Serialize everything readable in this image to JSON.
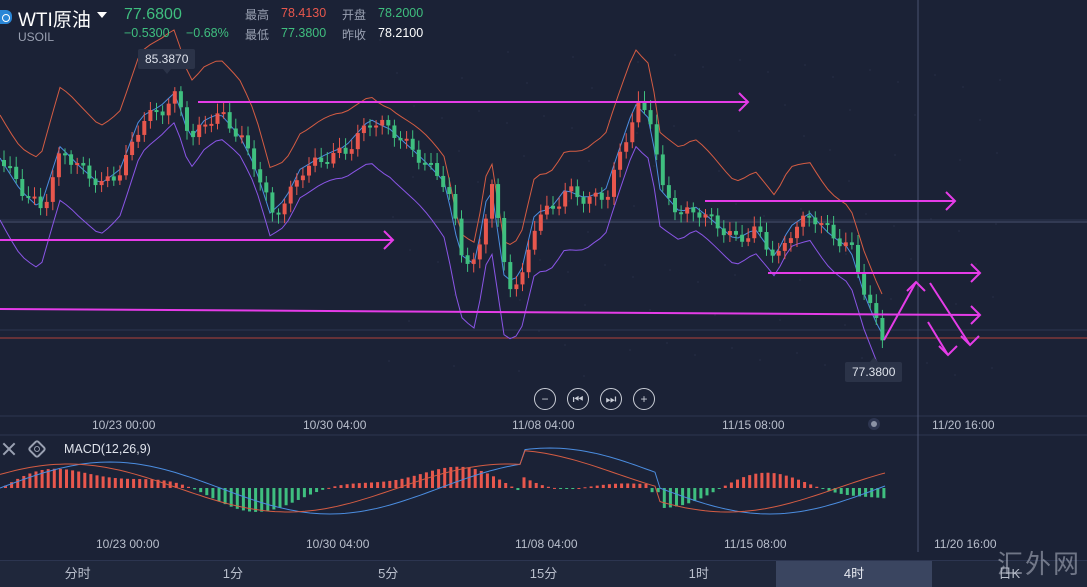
{
  "header": {
    "symbol_name": "WTI原油",
    "symbol_code": "USOIL",
    "last_price": "77.6800",
    "change": "−0.5300",
    "change_pct": "−0.68%",
    "quote": {
      "high_label": "最高",
      "high": "78.4130",
      "open_label": "开盘",
      "open": "78.2000",
      "low_label": "最低",
      "low": "77.3800",
      "prev_close_label": "昨收",
      "prev_close": "78.2100"
    }
  },
  "chart_data": {
    "type": "candlestick",
    "instrument": "USOIL",
    "interval": "4时",
    "x_ticks": [
      "10/23 00:00",
      "10/30 04:00",
      "11/08 04:00",
      "11/15 08:00",
      "11/20 16:00"
    ],
    "macd_x_ticks": [
      "10/23 00:00",
      "10/30 04:00",
      "11/08 04:00",
      "11/15 08:00",
      "11/20 16:00"
    ],
    "price_range": [
      76.5,
      86.3
    ],
    "period_high": 85.387,
    "period_low": 77.38,
    "indicators": [
      "Bollinger Bands",
      "MACD(12,26,9)"
    ],
    "colors": {
      "up": "#e8574d",
      "down": "#3fbf7f",
      "bb_upper": "#d45c43",
      "bb_mid": "#4b8de0",
      "bb_lower": "#8a55e6",
      "annotation": "#e53ce8"
    }
  },
  "labels": {
    "high_tag": "85.3870",
    "low_tag": "77.3800",
    "macd": "MACD(12,26,9)"
  },
  "controls": {
    "zoom_out": "−",
    "prev": "⏮",
    "next": "⏭",
    "zoom_in": "+"
  },
  "tabs": [
    "分时",
    "1分",
    "5分",
    "15分",
    "1时",
    "4时",
    "日K"
  ],
  "active_tab": "4时",
  "watermark": "汇外网"
}
